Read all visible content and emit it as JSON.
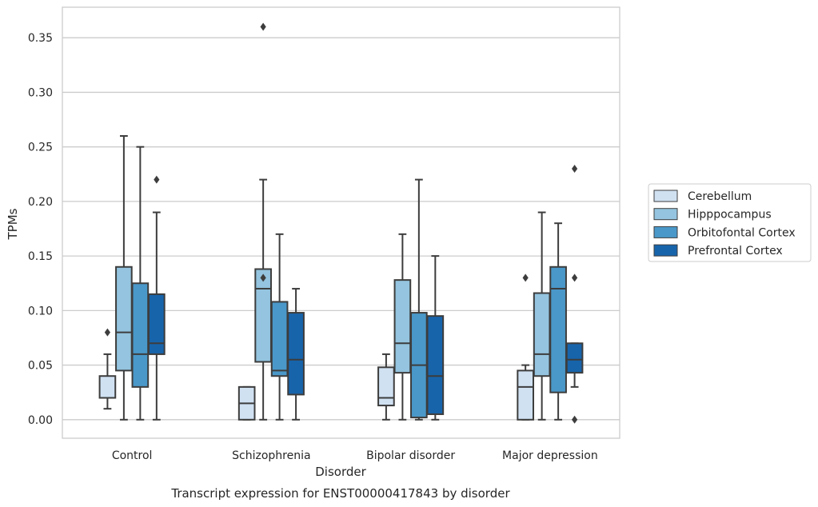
{
  "caption": "Transcript expression for ENST00000417843 by disorder",
  "chart_data": {
    "type": "box",
    "title": "",
    "xlabel": "Disorder",
    "ylabel": "TPMs",
    "ylim": [
      -0.017,
      0.378
    ],
    "yticks": [
      "0.00",
      "0.05",
      "0.10",
      "0.15",
      "0.20",
      "0.25",
      "0.30",
      "0.35"
    ],
    "ytick_values": [
      0,
      0.05,
      0.1,
      0.15,
      0.2,
      0.25,
      0.3,
      0.35
    ],
    "grid": "horizontal",
    "legend_position": "right",
    "categories": [
      "Control",
      "Schizophrenia",
      "Bipolar disorder",
      "Major depression"
    ],
    "series": [
      {
        "name": "Cerebellum",
        "color": "#d0e1f2",
        "boxes": [
          {
            "whisker_low": 0.01,
            "q1": 0.02,
            "median": 0.02,
            "q3": 0.04,
            "whisker_high": 0.06,
            "outliers": [
              0.08
            ]
          },
          {
            "whisker_low": 0.0,
            "q1": 0.0,
            "median": 0.015,
            "q3": 0.03,
            "whisker_high": 0.03,
            "outliers": []
          },
          {
            "whisker_low": 0.0,
            "q1": 0.013,
            "median": 0.02,
            "q3": 0.048,
            "whisker_high": 0.06,
            "outliers": []
          },
          {
            "whisker_low": 0.0,
            "q1": 0.0,
            "median": 0.03,
            "q3": 0.045,
            "whisker_high": 0.05,
            "outliers": [
              0.13
            ]
          }
        ]
      },
      {
        "name": "Hipppocampus",
        "color": "#94c4df",
        "boxes": [
          {
            "whisker_low": 0.0,
            "q1": 0.045,
            "median": 0.08,
            "q3": 0.14,
            "whisker_high": 0.26,
            "outliers": []
          },
          {
            "whisker_low": 0.0,
            "q1": 0.053,
            "median": 0.12,
            "q3": 0.138,
            "whisker_high": 0.22,
            "outliers": [
              0.13,
              0.36
            ]
          },
          {
            "whisker_low": 0.0,
            "q1": 0.043,
            "median": 0.07,
            "q3": 0.128,
            "whisker_high": 0.17,
            "outliers": []
          },
          {
            "whisker_low": 0.0,
            "q1": 0.04,
            "median": 0.06,
            "q3": 0.116,
            "whisker_high": 0.19,
            "outliers": []
          }
        ]
      },
      {
        "name": "Orbitofontal Cortex",
        "color": "#4a98c9",
        "boxes": [
          {
            "whisker_low": 0.0,
            "q1": 0.03,
            "median": 0.06,
            "q3": 0.125,
            "whisker_high": 0.25,
            "outliers": []
          },
          {
            "whisker_low": 0.0,
            "q1": 0.04,
            "median": 0.045,
            "q3": 0.108,
            "whisker_high": 0.17,
            "outliers": []
          },
          {
            "whisker_low": 0.0,
            "q1": 0.002,
            "median": 0.05,
            "q3": 0.098,
            "whisker_high": 0.22,
            "outliers": []
          },
          {
            "whisker_low": 0.0,
            "q1": 0.025,
            "median": 0.12,
            "q3": 0.14,
            "whisker_high": 0.18,
            "outliers": []
          }
        ]
      },
      {
        "name": "Prefrontal Cortex",
        "color": "#1764ab",
        "boxes": [
          {
            "whisker_low": 0.0,
            "q1": 0.06,
            "median": 0.07,
            "q3": 0.115,
            "whisker_high": 0.19,
            "outliers": [
              0.22
            ]
          },
          {
            "whisker_low": 0.0,
            "q1": 0.023,
            "median": 0.055,
            "q3": 0.098,
            "whisker_high": 0.12,
            "outliers": []
          },
          {
            "whisker_low": 0.0,
            "q1": 0.005,
            "median": 0.04,
            "q3": 0.095,
            "whisker_high": 0.15,
            "outliers": []
          },
          {
            "whisker_low": 0.03,
            "q1": 0.043,
            "median": 0.055,
            "q3": 0.07,
            "whisker_high": 0.07,
            "outliers": [
              0.0,
              0.13,
              0.23
            ]
          }
        ]
      }
    ]
  }
}
